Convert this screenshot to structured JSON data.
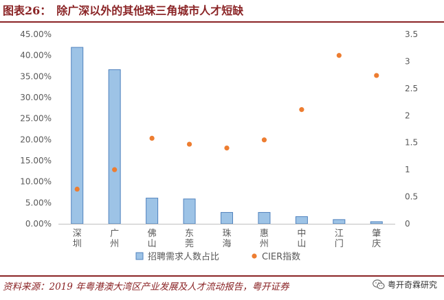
{
  "header": {
    "figure_no": "图表26：",
    "title": "除广深以外的其他珠三角城市人才短缺"
  },
  "footer": {
    "source": "资料来源：2019 年粤港澳大湾区产业发展及人才流动报告，粤开证券",
    "watermark": "粤开奇霖研究",
    "watermark_icon": "wechat-icon"
  },
  "colors": {
    "brand": "#8a2325",
    "bar_fill": "#9dc3e6",
    "bar_stroke": "#4f81bd",
    "dot": "#ed7d31"
  },
  "chart_data": {
    "type": "bar",
    "categories": [
      "深圳",
      "广州",
      "佛山",
      "东莞",
      "珠海",
      "惠州",
      "中山",
      "江门",
      "肇庆"
    ],
    "series": [
      {
        "name": "招聘需求人数占比",
        "type": "bar",
        "axis": "left",
        "values": [
          0.419,
          0.366,
          0.061,
          0.059,
          0.027,
          0.027,
          0.017,
          0.01,
          0.005
        ]
      },
      {
        "name": "CIER指数",
        "type": "scatter",
        "axis": "right",
        "values": [
          0.64,
          1.0,
          1.58,
          1.47,
          1.4,
          1.55,
          2.11,
          3.11,
          2.74
        ]
      }
    ],
    "ylim_left": [
      0,
      0.45
    ],
    "yticks_left": [
      "0.00%",
      "5.00%",
      "10.00%",
      "15.00%",
      "20.00%",
      "25.00%",
      "30.00%",
      "35.00%",
      "40.00%",
      "45.00%"
    ],
    "ylim_right": [
      0,
      3.5
    ],
    "yticks_right": [
      "0",
      "0.5",
      "1",
      "1.5",
      "2",
      "2.5",
      "3",
      "3.5"
    ],
    "grid": false,
    "legend_position": "bottom"
  }
}
